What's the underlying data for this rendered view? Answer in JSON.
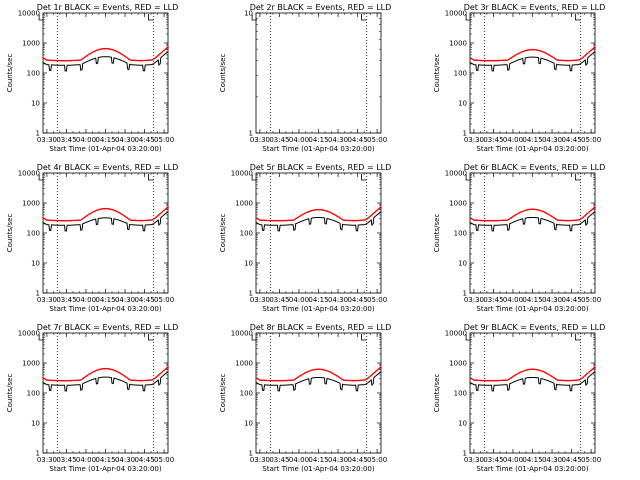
{
  "chart_data": [
    {
      "type": "line",
      "title": "Det 1r BLACK = Events, RED = LLD",
      "xlabel": "Start Time (01-Apr-04 03:20:00)",
      "ylabel": "Counts/sec",
      "yscale": "log",
      "ylim": [
        1,
        10000
      ],
      "xlim_min": [
        7,
        103
      ],
      "x_ticks": [
        "03:30",
        "03:45",
        "04:00",
        "04:15",
        "04:30",
        "04:45",
        "05:00"
      ],
      "y_ticks": [
        "1",
        "10",
        "100",
        "1000",
        "10000"
      ],
      "vlines_min": [
        18,
        92
      ],
      "markers_min": [
        4,
        88
      ],
      "has_data": true,
      "series": [
        {
          "color": "#000000"
        },
        {
          "color": "#ff0000"
        }
      ],
      "peak": {
        "black": 350,
        "red": 650
      }
    },
    {
      "type": "line",
      "title": "Det 2r BLACK = Events, RED = LLD",
      "xlabel": "Start Time (01-Apr-04 03:20:00)",
      "ylabel": "Counts/sec",
      "yscale": "log",
      "ylim": [
        1,
        10
      ],
      "xlim_min": [
        7,
        103
      ],
      "x_ticks": [
        "03:30",
        "03:45",
        "04:00",
        "04:15",
        "04:30",
        "04:45",
        "05:00"
      ],
      "y_ticks": [
        "1",
        "10"
      ],
      "vlines_min": [
        18,
        92
      ],
      "markers_min": [
        4,
        88
      ],
      "has_data": false,
      "series": []
    },
    {
      "type": "line",
      "title": "Det 3r BLACK = Events, RED = LLD",
      "xlabel": "Start Time (01-Apr-04 03:20:00)",
      "ylabel": "Counts/sec",
      "yscale": "log",
      "ylim": [
        1,
        10000
      ],
      "xlim_min": [
        7,
        103
      ],
      "x_ticks": [
        "03:30",
        "03:45",
        "04:00",
        "04:15",
        "04:30",
        "04:45",
        "05:00"
      ],
      "y_ticks": [
        "1",
        "10",
        "100",
        "1000",
        "10000"
      ],
      "vlines_min": [
        18,
        92
      ],
      "markers_min": [
        4,
        88
      ],
      "has_data": true,
      "series": [
        {
          "color": "#000000"
        },
        {
          "color": "#ff0000"
        }
      ],
      "peak": {
        "black": 340,
        "red": 600
      }
    },
    {
      "type": "line",
      "title": "Det 4r BLACK = Events, RED = LLD",
      "xlabel": "Start Time (01-Apr-04 03:20:00)",
      "ylabel": "Counts/sec",
      "yscale": "log",
      "ylim": [
        1,
        10000
      ],
      "xlim_min": [
        7,
        103
      ],
      "x_ticks": [
        "03:30",
        "03:45",
        "04:00",
        "04:15",
        "04:30",
        "04:45",
        "05:00"
      ],
      "y_ticks": [
        "1",
        "10",
        "100",
        "1000",
        "10000"
      ],
      "vlines_min": [
        18,
        92
      ],
      "markers_min": [
        4,
        88
      ],
      "has_data": true,
      "series": [
        {
          "color": "#000000"
        },
        {
          "color": "#ff0000"
        }
      ],
      "peak": {
        "black": 320,
        "red": 650
      }
    },
    {
      "type": "line",
      "title": "Det 5r BLACK = Events, RED = LLD",
      "xlabel": "Start Time (01-Apr-04 03:20:00)",
      "ylabel": "Counts/sec",
      "yscale": "log",
      "ylim": [
        1,
        10000
      ],
      "xlim_min": [
        7,
        103
      ],
      "x_ticks": [
        "03:30",
        "03:45",
        "04:00",
        "04:15",
        "04:30",
        "04:45",
        "05:00"
      ],
      "y_ticks": [
        "1",
        "10",
        "100",
        "1000",
        "10000"
      ],
      "vlines_min": [
        18,
        92
      ],
      "markers_min": [
        4,
        88
      ],
      "has_data": true,
      "series": [
        {
          "color": "#000000"
        },
        {
          "color": "#ff0000"
        }
      ],
      "peak": {
        "black": 330,
        "red": 600
      }
    },
    {
      "type": "line",
      "title": "Det 6r BLACK = Events, RED = LLD",
      "xlabel": "Start Time (01-Apr-04 03:20:00)",
      "ylabel": "Counts/sec",
      "yscale": "log",
      "ylim": [
        1,
        10000
      ],
      "xlim_min": [
        7,
        103
      ],
      "x_ticks": [
        "03:30",
        "03:45",
        "04:00",
        "04:15",
        "04:30",
        "04:45",
        "05:00"
      ],
      "y_ticks": [
        "1",
        "10",
        "100",
        "1000",
        "10000"
      ],
      "vlines_min": [
        18,
        92
      ],
      "markers_min": [
        4,
        88
      ],
      "has_data": true,
      "series": [
        {
          "color": "#000000"
        },
        {
          "color": "#ff0000"
        }
      ],
      "peak": {
        "black": 330,
        "red": 620
      }
    },
    {
      "type": "line",
      "title": "Det 7r BLACK = Events, RED = LLD",
      "xlabel": "Start Time (01-Apr-04 03:20:00)",
      "ylabel": "Counts/sec",
      "yscale": "log",
      "ylim": [
        1,
        10000
      ],
      "xlim_min": [
        7,
        103
      ],
      "x_ticks": [
        "03:30",
        "03:45",
        "04:00",
        "04:15",
        "04:30",
        "04:45",
        "05:00"
      ],
      "y_ticks": [
        "1",
        "10",
        "100",
        "1000",
        "10000"
      ],
      "vlines_min": [
        18,
        92
      ],
      "markers_min": [
        4,
        88
      ],
      "has_data": true,
      "series": [
        {
          "color": "#000000"
        },
        {
          "color": "#ff0000"
        }
      ],
      "peak": {
        "black": 340,
        "red": 650
      }
    },
    {
      "type": "line",
      "title": "Det 8r BLACK = Events, RED = LLD",
      "xlabel": "Start Time (01-Apr-04 03:20:00)",
      "ylabel": "Counts/sec",
      "yscale": "log",
      "ylim": [
        1,
        10000
      ],
      "xlim_min": [
        7,
        103
      ],
      "x_ticks": [
        "03:30",
        "03:45",
        "04:00",
        "04:15",
        "04:30",
        "04:45",
        "05:00"
      ],
      "y_ticks": [
        "1",
        "10",
        "100",
        "1000",
        "10000"
      ],
      "vlines_min": [
        18,
        92
      ],
      "markers_min": [
        4,
        88
      ],
      "has_data": true,
      "series": [
        {
          "color": "#000000"
        },
        {
          "color": "#ff0000"
        }
      ],
      "peak": {
        "black": 330,
        "red": 620
      }
    },
    {
      "type": "line",
      "title": "Det 9r BLACK = Events, RED = LLD",
      "xlabel": "Start Time (01-Apr-04 03:20:00)",
      "ylabel": "Counts/sec",
      "yscale": "log",
      "ylim": [
        1,
        10000
      ],
      "xlim_min": [
        7,
        103
      ],
      "x_ticks": [
        "03:30",
        "03:45",
        "04:00",
        "04:15",
        "04:30",
        "04:45",
        "05:00"
      ],
      "y_ticks": [
        "1",
        "10",
        "100",
        "1000",
        "10000"
      ],
      "vlines_min": [
        18,
        92
      ],
      "markers_min": [
        4,
        88
      ],
      "has_data": true,
      "series": [
        {
          "color": "#000000"
        },
        {
          "color": "#ff0000"
        }
      ],
      "peak": {
        "black": 330,
        "red": 620
      }
    }
  ]
}
